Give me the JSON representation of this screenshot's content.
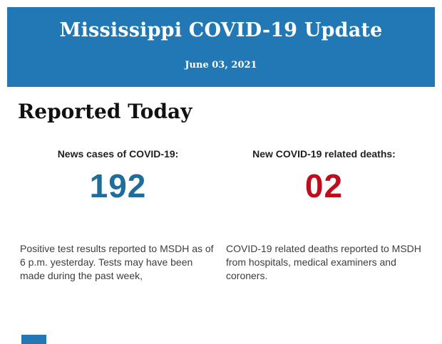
{
  "header": {
    "title": "Mississippi COVID-19 Update",
    "date": "June 03, 2021",
    "background_color": "#2278b4",
    "text_color": "#ffffff"
  },
  "section": {
    "title": "Reported Today"
  },
  "stats": [
    {
      "label": "News cases of COVID-19:",
      "value": "192",
      "value_color": "#1f6d9b",
      "description": "Positive test results reported to MSDH as of 6 p.m. yesterday. Tests may have been made during the past week,"
    },
    {
      "label": "New COVID-19 related deaths:",
      "value": "02",
      "value_color": "#c00d1d",
      "description": "COVID-19 related deaths reported to MSDH from hospitals, medical examiners and coroners."
    }
  ],
  "footer": {
    "peek_color": "#2278b4"
  }
}
